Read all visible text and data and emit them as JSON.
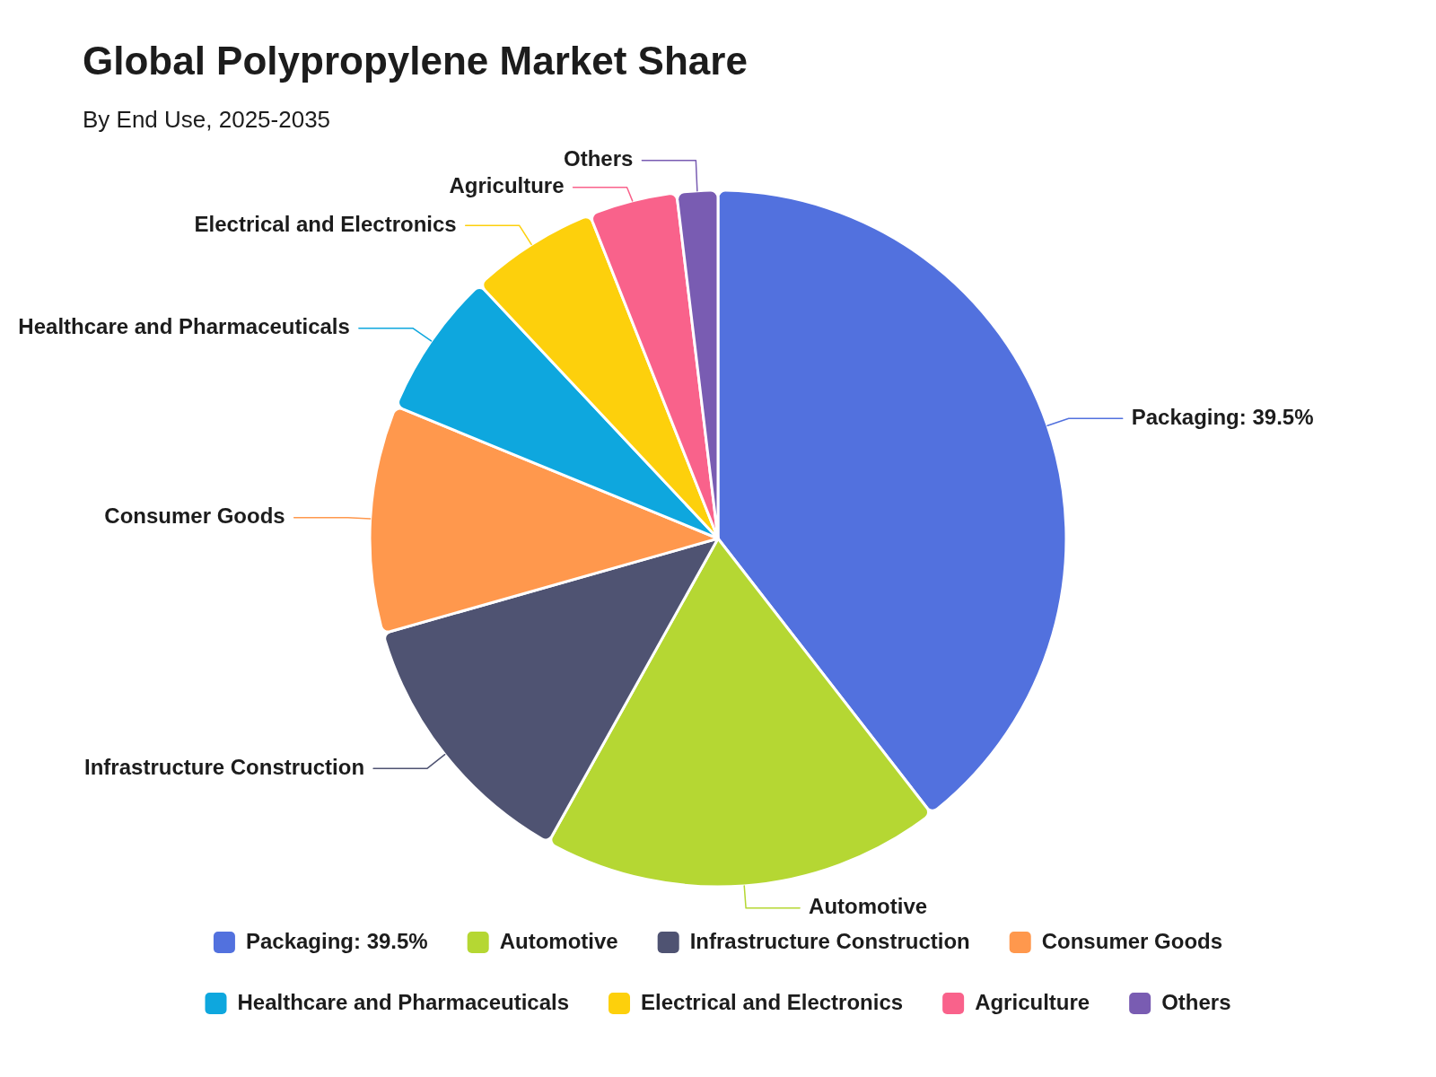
{
  "chart_data": {
    "type": "pie",
    "title": "Global Polypropylene Market Share",
    "subtitle": "By End Use, 2025-2035",
    "categories": [
      "Packaging: 39.5%",
      "Automotive",
      "Infrastructure Construction",
      "Consumer Goods",
      "Healthcare and Pharmaceuticals",
      "Electrical and Electronics",
      "Agriculture",
      "Others"
    ],
    "values": [
      39.5,
      18.6,
      12.5,
      10.6,
      6.8,
      6.0,
      4.1,
      1.9
    ],
    "colors": [
      "#5271de",
      "#b5d733",
      "#4f5372",
      "#ff984d",
      "#0ea7de",
      "#fdd00c",
      "#f9628b",
      "#795cb2"
    ],
    "legend": "bottom"
  }
}
